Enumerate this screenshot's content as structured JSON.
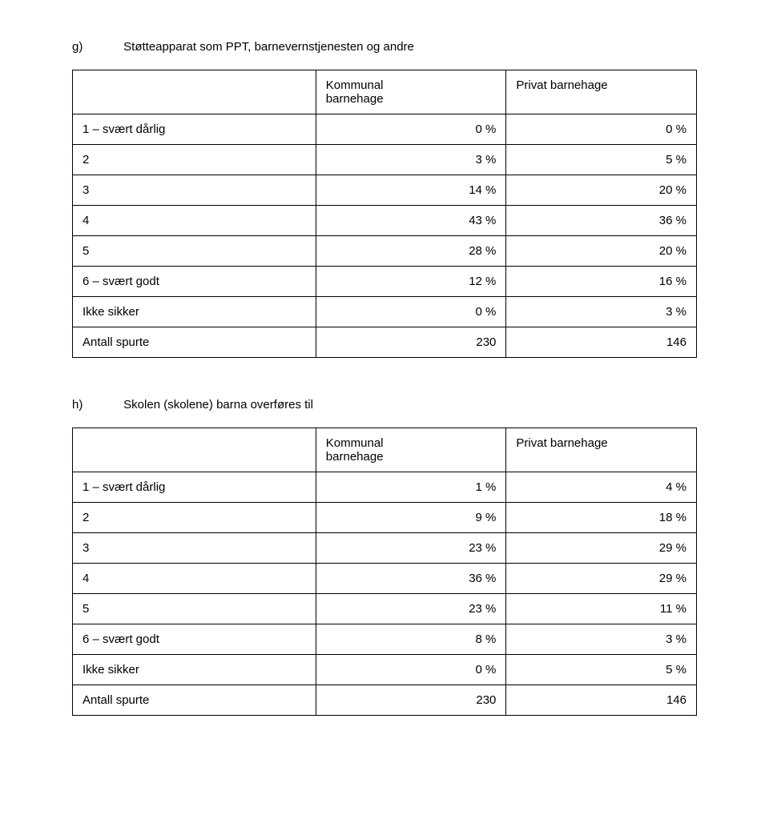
{
  "sections": {
    "g": {
      "letter": "g)",
      "title": "Støtteapparat som PPT, barnevernstjenesten og andre",
      "headers": {
        "col1": "",
        "col2_line1": "Kommunal",
        "col2_line2": "barnehage",
        "col3": "Privat barnehage"
      },
      "rows": [
        {
          "label": "1 – svært dårlig",
          "kommunal": "0 %",
          "privat": "0 %"
        },
        {
          "label": "2",
          "kommunal": "3 %",
          "privat": "5 %"
        },
        {
          "label": "3",
          "kommunal": "14 %",
          "privat": "20 %"
        },
        {
          "label": "4",
          "kommunal": "43 %",
          "privat": "36 %"
        },
        {
          "label": "5",
          "kommunal": "28 %",
          "privat": "20 %"
        },
        {
          "label": "6 – svært godt",
          "kommunal": "12 %",
          "privat": "16 %"
        },
        {
          "label": "Ikke sikker",
          "kommunal": "0 %",
          "privat": "3 %"
        },
        {
          "label": "Antall spurte",
          "kommunal": "230",
          "privat": "146"
        }
      ]
    },
    "h": {
      "letter": "h)",
      "title": "Skolen (skolene) barna overføres til",
      "headers": {
        "col1": "",
        "col2_line1": "Kommunal",
        "col2_line2": "barnehage",
        "col3": "Privat barnehage"
      },
      "rows": [
        {
          "label": "1 – svært dårlig",
          "kommunal": "1 %",
          "privat": "4 %"
        },
        {
          "label": "2",
          "kommunal": "9 %",
          "privat": "18 %"
        },
        {
          "label": "3",
          "kommunal": "23 %",
          "privat": "29 %"
        },
        {
          "label": "4",
          "kommunal": "36 %",
          "privat": "29 %"
        },
        {
          "label": "5",
          "kommunal": "23 %",
          "privat": "11 %"
        },
        {
          "label": "6 – svært godt",
          "kommunal": "8 %",
          "privat": "3 %"
        },
        {
          "label": "Ikke sikker",
          "kommunal": "0 %",
          "privat": "5 %"
        },
        {
          "label": "Antall spurte",
          "kommunal": "230",
          "privat": "146"
        }
      ]
    }
  }
}
